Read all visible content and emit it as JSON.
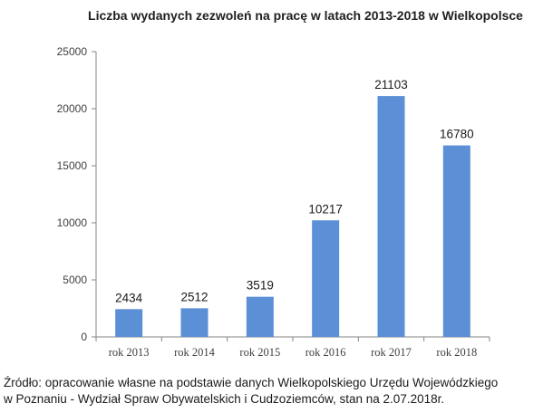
{
  "chart_data": {
    "type": "bar",
    "title": "Liczba wydanych zezwoleń na pracę w latach 2013-2018 w Wielkopolsce",
    "categories": [
      "rok 2013",
      "rok 2014",
      "rok 2015",
      "rok 2016",
      "rok 2017",
      "rok 2018"
    ],
    "values": [
      2434,
      2512,
      3519,
      10217,
      21103,
      16780
    ],
    "ylim": [
      0,
      25000
    ],
    "yticks": [
      0,
      5000,
      10000,
      15000,
      20000,
      25000
    ],
    "xlabel": "",
    "ylabel": "",
    "grid": false,
    "legend": "none",
    "bar_color": "#5b8fd6"
  },
  "source": {
    "line1": "Źródło: opracowanie własne na podstawie danych Wielkopolskiego Urzędu Wojewódzkiego",
    "line2": "w Poznaniu - Wydział Spraw Obywatelskich i Cudzoziemców, stan na 2.07.2018r."
  }
}
